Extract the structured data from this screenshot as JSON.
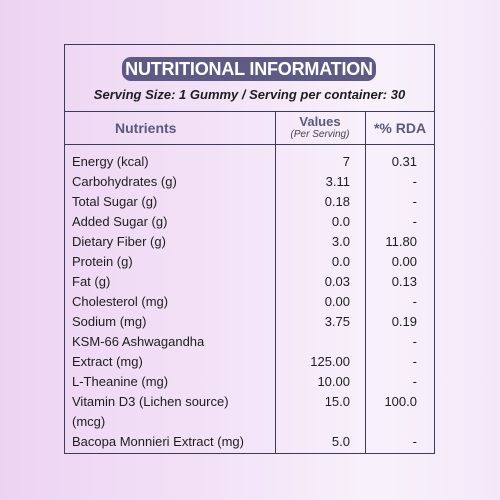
{
  "panel": {
    "title": "NUTRITIONAL INFORMATION",
    "serving": "Serving Size: 1 Gummy / Serving per container: 30"
  },
  "columns": {
    "nutrients": "Nutrients",
    "values": "Values",
    "values_sub": "(Per Serving)",
    "rda": "*% RDA"
  },
  "rows": [
    {
      "name": "Energy (kcal)",
      "value": "7",
      "rda": "0.31"
    },
    {
      "name": "Carbohydrates (g)",
      "value": "3.11",
      "rda": "-"
    },
    {
      "name": "Total Sugar (g)",
      "value": "0.18",
      "rda": "-"
    },
    {
      "name": "Added Sugar (g)",
      "value": "0.0",
      "rda": "-"
    },
    {
      "name": "Dietary Fiber (g)",
      "value": "3.0",
      "rda": "11.80"
    },
    {
      "name": "Protein (g)",
      "value": "0.0",
      "rda": "0.00"
    },
    {
      "name": "Fat (g)",
      "value": "0.03",
      "rda": "0.13"
    },
    {
      "name": "Cholesterol (mg)",
      "value": "0.00",
      "rda": "-"
    },
    {
      "name": "Sodium (mg)",
      "value": "3.75",
      "rda": "0.19"
    },
    {
      "name": "KSM-66 Ashwagandha",
      "value": "",
      "rda": "-"
    },
    {
      "name": "Extract (mg)",
      "value": "125.00",
      "rda": "-"
    },
    {
      "name": "L-Theanine (mg)",
      "value": "10.00",
      "rda": "-"
    },
    {
      "name": "Vitamin D3 (Lichen source)",
      "value": "15.0",
      "rda": "100.0"
    },
    {
      "name": "(mcg)",
      "value": "",
      "rda": ""
    },
    {
      "name": "Bacopa Monnieri Extract (mg)",
      "value": "5.0",
      "rda": "-"
    }
  ]
}
